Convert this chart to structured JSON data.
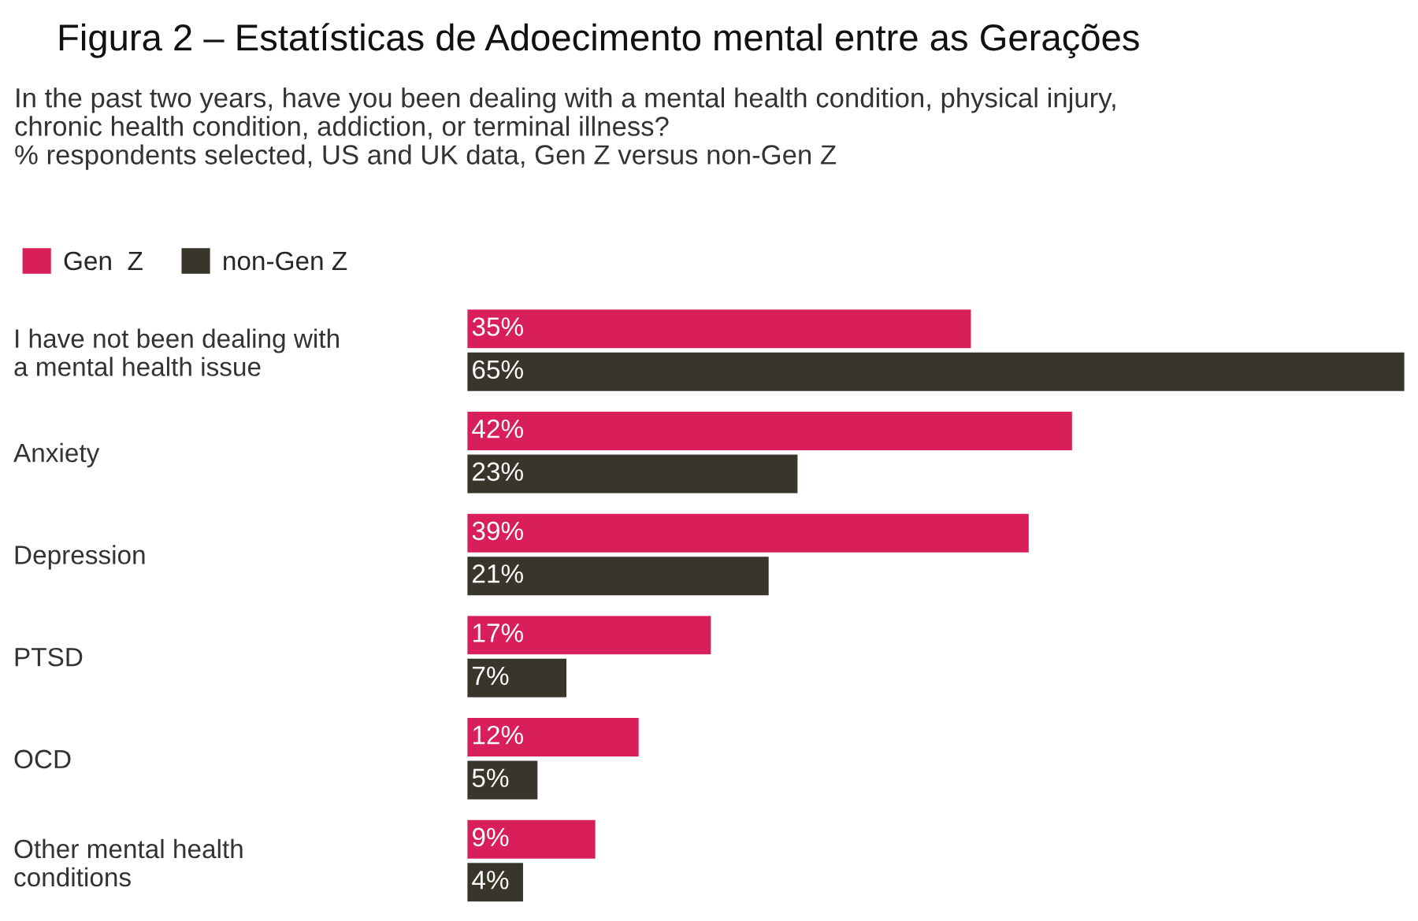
{
  "chart_data": {
    "type": "bar",
    "orientation": "horizontal",
    "title": "Figura 2 – Estatísticas de Adoecimento mental entre as Gerações",
    "subtitle": "In the past two years, have you been dealing with a mental health condition, physical injury,\nchronic health condition, addiction, or terminal illness?\n% respondents selected, US and UK data, Gen Z versus non-Gen Z",
    "categories": [
      "I have not been dealing with\na mental health issue",
      "Anxiety",
      "Depression",
      "PTSD",
      "OCD",
      "Other mental health\nconditions"
    ],
    "series": [
      {
        "name": "Gen  Z",
        "color": "#d81f5a",
        "values": [
          35,
          42,
          39,
          17,
          12,
          9
        ],
        "value_labels": [
          "35%",
          "42%",
          "39%",
          "17%",
          "12%",
          "9%"
        ]
      },
      {
        "name": "non-Gen Z",
        "color": "#38362b",
        "values": [
          65,
          23,
          21,
          7,
          5,
          4
        ],
        "value_labels": [
          "65%",
          "23%",
          "21%",
          "7%",
          "5%",
          "4%"
        ]
      }
    ],
    "legend": "top left",
    "grid": false
  }
}
